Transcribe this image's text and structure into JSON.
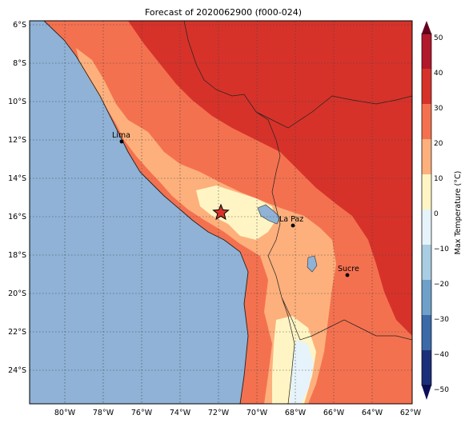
{
  "title": "Forecast of 2020062900 (f000-024)",
  "map": {
    "lat_ticks": [
      "6°S",
      "8°S",
      "10°S",
      "12°S",
      "14°S",
      "16°S",
      "18°S",
      "20°S",
      "22°S",
      "24°S"
    ],
    "lon_ticks": [
      "80°W",
      "78°W",
      "76°W",
      "74°W",
      "72°W",
      "70°W",
      "68°W",
      "66°W",
      "64°W",
      "62°W"
    ],
    "cities": [
      {
        "name": "Lima",
        "lon": -77.0,
        "lat": -12.05
      },
      {
        "name": "La Paz",
        "lon": -68.1,
        "lat": -16.5
      },
      {
        "name": "Sucre",
        "lon": -65.26,
        "lat": -19.04
      }
    ],
    "marker": {
      "symbol": "star",
      "lon": -71.9,
      "lat": -15.8
    },
    "extent": {
      "lon_min": -81.8,
      "lon_max": -62.0,
      "lat_max": -5.8,
      "lat_min": -25.8
    },
    "ocean_color": "#8fb2d6",
    "grid": "dotted"
  },
  "colorbar": {
    "label": "Max Temperature (°C)",
    "ticks": [
      "50",
      "40",
      "30",
      "20",
      "10",
      "0",
      "−10",
      "−20",
      "−30",
      "−40",
      "−50"
    ],
    "colors": [
      "#67001f",
      "#b2182b",
      "#d6322a",
      "#f4714f",
      "#fdb07c",
      "#fff5c4",
      "#e6f3fa",
      "#a9cde2",
      "#6fa0c9",
      "#3b6aa8",
      "#1a2f7a",
      "#0d0e5a"
    ]
  },
  "legend_bands": [
    {
      "range": "40–50",
      "color": "#b2182b"
    },
    {
      "range": "30–40",
      "color": "#d6322a"
    },
    {
      "range": "20–30",
      "color": "#f4714f"
    },
    {
      "range": "10–20",
      "color": "#fdb07c"
    },
    {
      "range": "0–10",
      "color": "#fff5c4"
    },
    {
      "range": "-10–0",
      "color": "#e6f3fa"
    }
  ]
}
